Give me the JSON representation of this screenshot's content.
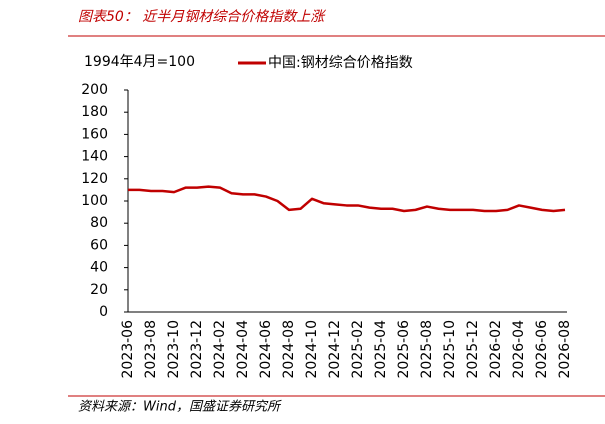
{
  "chart_data": {
    "type": "line",
    "title": "图表50： 近半月钢材综合价格指数上涨",
    "y_label": "1994年4月=100",
    "source": "资料来源：Wind，国盛证券研究所",
    "categories": [
      "2023-06",
      null,
      "2023-08",
      null,
      "2023-10",
      null,
      "2023-12",
      null,
      "2024-02",
      null,
      "2024-04",
      null,
      "2024-06",
      null,
      "2024-08",
      null,
      "2024-10",
      null,
      "2024-12",
      null,
      "2025-02",
      null,
      "2025-04",
      null,
      "2025-06",
      null,
      "2025-08",
      null,
      "2025-10",
      null,
      "2025-12",
      null,
      "2026-02",
      null,
      "2026-04",
      null,
      "2026-06",
      null,
      "2026-08"
    ],
    "series": [
      {
        "name": "中国:钢材综合价格指数",
        "color": "#c00000",
        "values": [
          110,
          110,
          109,
          109,
          108,
          112,
          112,
          113,
          112,
          107,
          106,
          106,
          104,
          100,
          92,
          93,
          102,
          98,
          97,
          96,
          96,
          94,
          93,
          93,
          91,
          92,
          95,
          93,
          92,
          92,
          92,
          91,
          91,
          92,
          96,
          94,
          92,
          91,
          92
        ]
      }
    ],
    "ylim": [
      0,
      200
    ],
    "yticks": [
      0,
      20,
      40,
      60,
      80,
      100,
      120,
      140,
      160,
      180,
      200
    ]
  }
}
